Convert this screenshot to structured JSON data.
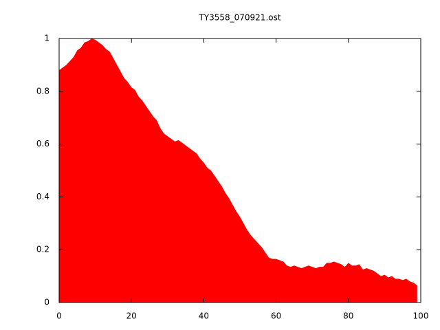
{
  "chart_data": {
    "type": "area",
    "title": "TY3558_070921.ost",
    "x": [
      0,
      1,
      2,
      3,
      4,
      5,
      6,
      7,
      8,
      9,
      10,
      11,
      12,
      13,
      14,
      15,
      16,
      17,
      18,
      19,
      20,
      21,
      22,
      23,
      24,
      25,
      26,
      27,
      28,
      29,
      30,
      31,
      32,
      33,
      34,
      35,
      36,
      37,
      38,
      39,
      40,
      41,
      42,
      43,
      44,
      45,
      46,
      47,
      48,
      49,
      50,
      51,
      52,
      53,
      54,
      55,
      56,
      57,
      58,
      59,
      60,
      61,
      62,
      63,
      64,
      65,
      66,
      67,
      68,
      69,
      70,
      71,
      72,
      73,
      74,
      75,
      76,
      77,
      78,
      79,
      80,
      81,
      82,
      83,
      84,
      85,
      86,
      87,
      88,
      89,
      90,
      91,
      92,
      93,
      94,
      95,
      96,
      97,
      98,
      99
    ],
    "series": [
      {
        "color": "#ff0000",
        "values": [
          0.88,
          0.89,
          0.9,
          0.915,
          0.93,
          0.955,
          0.965,
          0.985,
          0.99,
          1.0,
          0.995,
          0.985,
          0.975,
          0.96,
          0.95,
          0.925,
          0.9,
          0.875,
          0.85,
          0.835,
          0.815,
          0.805,
          0.78,
          0.765,
          0.745,
          0.725,
          0.705,
          0.69,
          0.66,
          0.64,
          0.63,
          0.62,
          0.61,
          0.615,
          0.605,
          0.595,
          0.585,
          0.575,
          0.565,
          0.545,
          0.53,
          0.51,
          0.5,
          0.48,
          0.46,
          0.44,
          0.415,
          0.395,
          0.37,
          0.345,
          0.325,
          0.3,
          0.275,
          0.255,
          0.24,
          0.225,
          0.21,
          0.19,
          0.17,
          0.165,
          0.165,
          0.16,
          0.155,
          0.14,
          0.135,
          0.14,
          0.135,
          0.13,
          0.135,
          0.14,
          0.135,
          0.13,
          0.135,
          0.135,
          0.15,
          0.15,
          0.155,
          0.15,
          0.145,
          0.135,
          0.15,
          0.14,
          0.14,
          0.145,
          0.125,
          0.13,
          0.125,
          0.12,
          0.11,
          0.1,
          0.105,
          0.095,
          0.1,
          0.09,
          0.09,
          0.085,
          0.09,
          0.08,
          0.075,
          0.065
        ]
      }
    ],
    "xlim": [
      0,
      100
    ],
    "xticks": [
      0,
      20,
      40,
      60,
      80,
      100
    ],
    "ylim": [
      0,
      1
    ],
    "yticks": [
      0,
      0.2,
      0.4,
      0.6,
      0.8,
      1
    ]
  }
}
